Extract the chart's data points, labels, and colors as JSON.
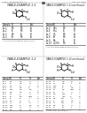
{
  "background_color": "#ffffff",
  "title_top_left": "C 08 L 2021/048730 A1",
  "title_top_right": "Apr. 14, 2022",
  "page_number": "68",
  "panel_labels": [
    "TABLE-EXAMPLE 1-1",
    "TABLE-EXAMPLE 1-1(continued)",
    "TABLE-EXAMPLE 1-2",
    "TABLE-EXAMPLE 1-2(continued)"
  ],
  "text_color": "#1a1a1a",
  "line_color": "#333333",
  "light_gray": "#aaaaaa",
  "header_bg": "#ffffff"
}
